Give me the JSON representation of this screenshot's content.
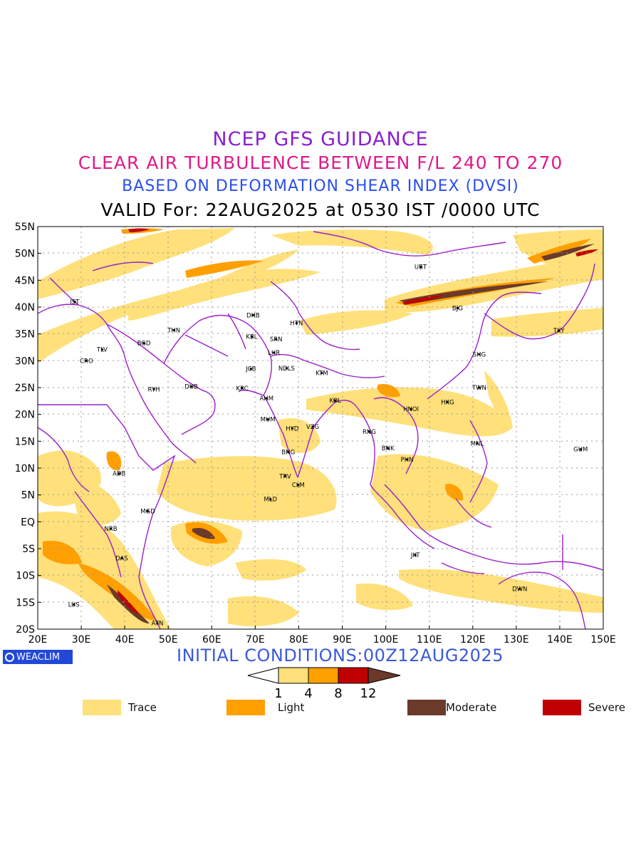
{
  "titles": {
    "line1": "NCEP GFS GUIDANCE",
    "line2": "CLEAR AIR TURBULENCE BETWEEN F/L 240 TO 270",
    "line3": "BASED ON DEFORMATION SHEAR INDEX (DVSI)",
    "line4": "VALID For: 22AUG2025 at 0530 IST /0000 UTC"
  },
  "colors": {
    "title1": "#8a1fd0",
    "title2": "#e01a8a",
    "title3": "#2a4ef0",
    "trace": "#ffe07a",
    "light": "#ff9f00",
    "moderate": "#6b3a2a",
    "severe": "#c00000",
    "boundaries": "#9b1fc9",
    "grid": "#9a9a9a"
  },
  "lat_labels": [
    "55N",
    "50N",
    "45N",
    "40N",
    "35N",
    "30N",
    "25N",
    "20N",
    "15N",
    "10N",
    "5N",
    "EQ",
    "5S",
    "10S",
    "15S",
    "20S"
  ],
  "lon_labels": [
    "20E",
    "30E",
    "40E",
    "50E",
    "60E",
    "70E",
    "80E",
    "90E",
    "100E",
    "110E",
    "120E",
    "130E",
    "140E",
    "150E"
  ],
  "stations": [
    {
      "code": "UBT",
      "lon": 108,
      "lat": 47.5
    },
    {
      "code": "IST",
      "lon": 28.5,
      "lat": 41
    },
    {
      "code": "BJG",
      "lon": 116.5,
      "lat": 39.8
    },
    {
      "code": "DHB",
      "lon": 69.5,
      "lat": 38.5
    },
    {
      "code": "HTN",
      "lon": 79.5,
      "lat": 37
    },
    {
      "code": "THN",
      "lon": 51.3,
      "lat": 35.7
    },
    {
      "code": "KBL",
      "lon": 69.2,
      "lat": 34.5
    },
    {
      "code": "SRN",
      "lon": 74.8,
      "lat": 34
    },
    {
      "code": "TKY",
      "lon": 139.8,
      "lat": 35.6
    },
    {
      "code": "BGD",
      "lon": 44.4,
      "lat": 33.3
    },
    {
      "code": "LHR",
      "lon": 74.3,
      "lat": 31.5
    },
    {
      "code": "TLV",
      "lon": 34.8,
      "lat": 32.1
    },
    {
      "code": "SHG",
      "lon": 121.5,
      "lat": 31.2
    },
    {
      "code": "CRO",
      "lon": 31.2,
      "lat": 30
    },
    {
      "code": "JCB",
      "lon": 69,
      "lat": 28.5
    },
    {
      "code": "NDLS",
      "lon": 77.2,
      "lat": 28.6
    },
    {
      "code": "KTM",
      "lon": 85.3,
      "lat": 27.7
    },
    {
      "code": "RYH",
      "lon": 46.7,
      "lat": 24.7
    },
    {
      "code": "DUB",
      "lon": 55.3,
      "lat": 25.2
    },
    {
      "code": "KRC",
      "lon": 67,
      "lat": 24.9
    },
    {
      "code": "TWN",
      "lon": 121.5,
      "lat": 25
    },
    {
      "code": "AHM",
      "lon": 72.6,
      "lat": 23
    },
    {
      "code": "KOL",
      "lon": 88.4,
      "lat": 22.6
    },
    {
      "code": "HKG",
      "lon": 114.2,
      "lat": 22.3
    },
    {
      "code": "HNOI",
      "lon": 105.8,
      "lat": 21
    },
    {
      "code": "MUM",
      "lon": 72.9,
      "lat": 19.1
    },
    {
      "code": "HYD",
      "lon": 78.5,
      "lat": 17.4
    },
    {
      "code": "VZG",
      "lon": 83.2,
      "lat": 17.7
    },
    {
      "code": "RNG",
      "lon": 96.2,
      "lat": 16.8
    },
    {
      "code": "MNL",
      "lon": 121,
      "lat": 14.6
    },
    {
      "code": "GUM",
      "lon": 144.8,
      "lat": 13.5
    },
    {
      "code": "BNK",
      "lon": 100.5,
      "lat": 13.7
    },
    {
      "code": "BNG",
      "lon": 77.6,
      "lat": 13
    },
    {
      "code": "PHN",
      "lon": 104.9,
      "lat": 11.6
    },
    {
      "code": "ADB",
      "lon": 38.7,
      "lat": 9
    },
    {
      "code": "TRV",
      "lon": 76.9,
      "lat": 8.5
    },
    {
      "code": "CLM",
      "lon": 79.9,
      "lat": 6.9
    },
    {
      "code": "MLD",
      "lon": 73.5,
      "lat": 4.2
    },
    {
      "code": "MGD",
      "lon": 45.3,
      "lat": 2
    },
    {
      "code": "NRB",
      "lon": 36.8,
      "lat": -1.3
    },
    {
      "code": "DAS",
      "lon": 39.3,
      "lat": -6.8
    },
    {
      "code": "JKT",
      "lon": 106.8,
      "lat": -6.2
    },
    {
      "code": "DWN",
      "lon": 130.8,
      "lat": -12.5
    },
    {
      "code": "LUS",
      "lon": 28.3,
      "lat": -15.4
    },
    {
      "code": "ATN",
      "lon": 47.5,
      "lat": -18.9
    }
  ],
  "initial_conditions": "INITIAL CONDITIONS:00Z12AUG2025",
  "logo_text": "WEACLIM",
  "colorbar": {
    "ticks": [
      "1",
      "4",
      "8",
      "12"
    ]
  },
  "legend": [
    {
      "label": "Trace",
      "color": "#ffe07a"
    },
    {
      "label": "Light",
      "color": "#ff9f00"
    },
    {
      "label": "Moderate",
      "color": "#6b3a2a"
    },
    {
      "label": "Severe",
      "color": "#c00000"
    }
  ]
}
